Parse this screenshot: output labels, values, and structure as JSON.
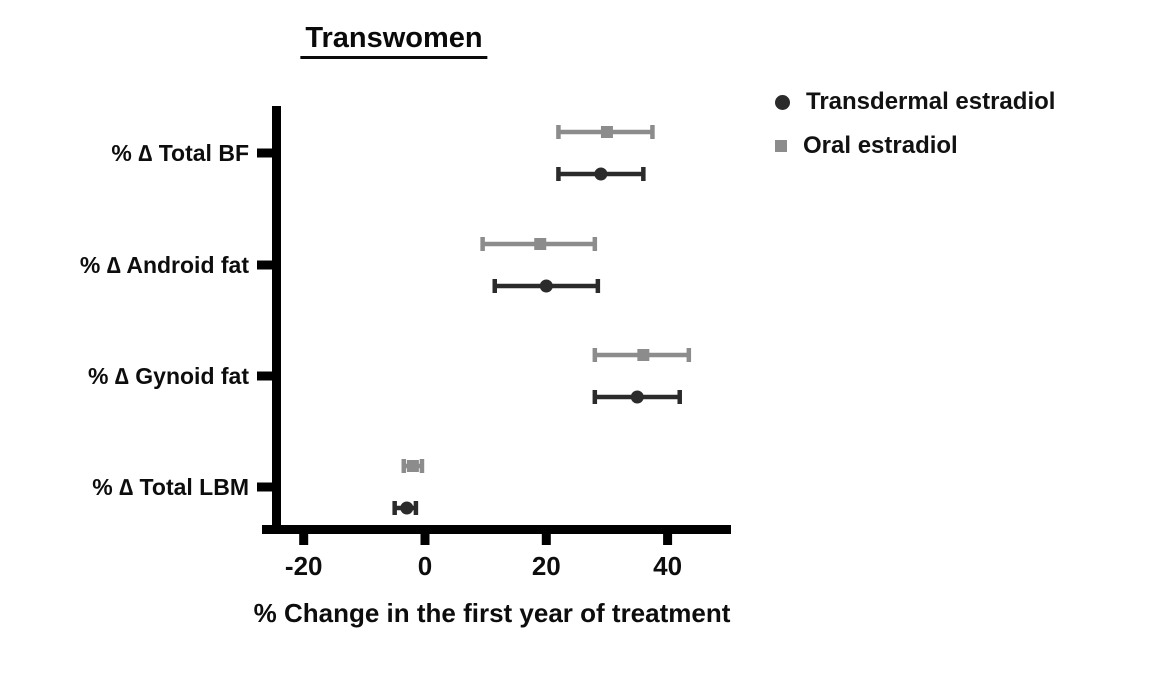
{
  "chart": {
    "title": "Transwomen",
    "xlabel": "% Change in the first year of treatment"
  },
  "chart_data": {
    "type": "scatter",
    "subtype": "horizontal-dot-plot-with-error-bars",
    "title": "Transwomen",
    "xlabel": "% Change in the first year of treatment",
    "ylabel": "",
    "categories": [
      "% ∆ Total BF",
      "% ∆ Android fat",
      "% ∆ Gynoid fat",
      "% ∆ Total LBM"
    ],
    "xlim": [
      -27,
      50
    ],
    "xticks": [
      -20,
      0,
      20,
      40
    ],
    "grid": false,
    "legend_position": "top-right",
    "axis_color": "#000000",
    "series": [
      {
        "name": "Transdermal estradiol",
        "marker": "circle",
        "color": "#2b2b2b",
        "values": [
          29,
          20,
          35,
          -3
        ],
        "ci_low": [
          22,
          11.5,
          28,
          -5
        ],
        "ci_high": [
          36,
          28.5,
          42,
          -1.5
        ]
      },
      {
        "name": "Oral estradiol",
        "marker": "square",
        "color": "#8c8c8c",
        "values": [
          30,
          19,
          36,
          -2
        ],
        "ci_low": [
          22,
          9.5,
          28,
          -3.5
        ],
        "ci_high": [
          37.5,
          28,
          43.5,
          -0.5
        ]
      }
    ]
  }
}
